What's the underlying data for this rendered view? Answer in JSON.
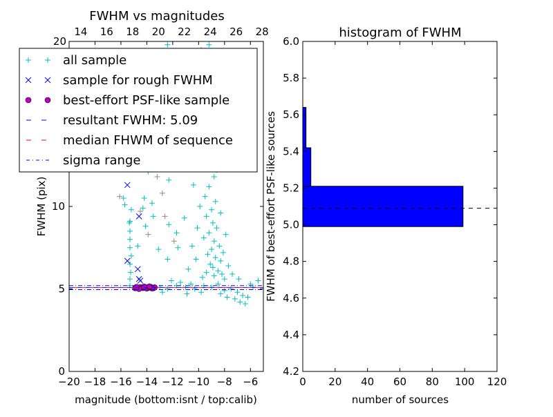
{
  "chart_data": [
    {
      "type": "scatter",
      "title": "FWHM vs magnitudes",
      "xlabel": "magnitude (bottom:isnt / top:calib)",
      "ylabel": "FWHM (pix)",
      "xlim": [
        -20,
        -5
      ],
      "ylim": [
        0,
        20
      ],
      "xticks": [
        -20,
        -18,
        -16,
        -14,
        -12,
        -10,
        -8,
        -6
      ],
      "xtick_labels": [
        "−20",
        "−18",
        "−16",
        "−14",
        "−12",
        "−10",
        "−8",
        "−6"
      ],
      "yticks": [
        0,
        5,
        10
      ],
      "ytick_labels": [
        "0",
        "5",
        "10"
      ],
      "top_ticks": [
        14,
        16,
        18,
        20,
        22,
        24,
        26,
        28
      ],
      "top_tick_labels": [
        "14",
        "16",
        "18",
        "20",
        "22",
        "24",
        "26",
        "28"
      ],
      "top_offset": 33.1,
      "top_corner_label": "20",
      "legend": {
        "placement": "upper-left",
        "entries": [
          "all sample",
          "sample for rough FWHM",
          "best-effort PSF-like sample",
          "resultant FWHM: 5.09",
          "median FHWM of sequence",
          "sigma range"
        ]
      },
      "colors": {
        "all": "#00bfbf",
        "rough": "#0000ff",
        "psf": "#bf00bf",
        "result": "#0000ff",
        "median": "#ff0000",
        "sigma": "#0000ff",
        "gray": "#a08080"
      },
      "resultant_fwhm": 5.09,
      "median_fwhm": 5.09,
      "sigma_range": [
        4.96,
        5.2
      ],
      "series_all": [
        [
          -15.3,
          5.2
        ],
        [
          -15.3,
          5.6
        ],
        [
          -15.25,
          6
        ],
        [
          -15.3,
          6.5
        ],
        [
          -15.2,
          7
        ],
        [
          -15.3,
          7.5
        ],
        [
          -15.3,
          8
        ],
        [
          -15.3,
          8.5
        ],
        [
          -15.35,
          9
        ],
        [
          -15.3,
          9.1
        ],
        [
          -15.2,
          9.8
        ],
        [
          -15.7,
          10.1
        ],
        [
          -15.4,
          12.5
        ],
        [
          -15.8,
          10.5
        ],
        [
          -15.5,
          13.3
        ],
        [
          -14.2,
          10.5
        ],
        [
          -14.3,
          9.9
        ],
        [
          -14.1,
          8.8
        ],
        [
          -13.6,
          10.2
        ],
        [
          -13.5,
          9.4
        ],
        [
          -14.7,
          7.6
        ],
        [
          -13.1,
          7.4
        ],
        [
          -12.4,
          6.8
        ],
        [
          -12.3,
          8.9
        ],
        [
          -11.7,
          8.4
        ],
        [
          -11.1,
          9.3
        ],
        [
          -11.6,
          7.5
        ],
        [
          -12.3,
          11.6
        ],
        [
          -13.9,
          12.1
        ],
        [
          -12,
          12.4
        ],
        [
          -13.6,
          15.5
        ],
        [
          -12.5,
          15
        ],
        [
          -11,
          14.5
        ],
        [
          -10.5,
          16
        ],
        [
          -10,
          17.5
        ],
        [
          -9.8,
          19.5
        ],
        [
          -10.3,
          18
        ],
        [
          -12.4,
          19.8
        ],
        [
          -13.4,
          16.8
        ],
        [
          -11.5,
          17
        ],
        [
          -9.2,
          19.8
        ],
        [
          -9.6,
          18.5
        ],
        [
          -9.3,
          16.5
        ],
        [
          -9.1,
          15.2
        ],
        [
          -8.9,
          14
        ],
        [
          -9.4,
          13.2
        ],
        [
          -9.0,
          12.5
        ],
        [
          -8.8,
          11.8
        ],
        [
          -9.2,
          11.2
        ],
        [
          -9.5,
          10.6
        ],
        [
          -8.7,
          10.3
        ],
        [
          -9.0,
          9.8
        ],
        [
          -9.4,
          9.4
        ],
        [
          -8.9,
          9.0
        ],
        [
          -8.6,
          8.7
        ],
        [
          -9.2,
          8.4
        ],
        [
          -9.6,
          8.1
        ],
        [
          -8.8,
          7.9
        ],
        [
          -8.4,
          7.6
        ],
        [
          -9.0,
          7.4
        ],
        [
          -9.3,
          7.1
        ],
        [
          -8.7,
          6.9
        ],
        [
          -8.3,
          6.7
        ],
        [
          -9.1,
          6.5
        ],
        [
          -8.9,
          6.3
        ],
        [
          -8.5,
          6.1
        ],
        [
          -9.4,
          6.0
        ],
        [
          -8.2,
          5.9
        ],
        [
          -8.8,
          5.8
        ],
        [
          -9.7,
          5.7
        ],
        [
          -8.0,
          5.6
        ],
        [
          -10.2,
          6.8
        ],
        [
          -10.5,
          7.6
        ],
        [
          -10.8,
          6.2
        ],
        [
          -10.1,
          8.7
        ],
        [
          -9.9,
          10.0
        ],
        [
          -10.4,
          11.3
        ],
        [
          -8.1,
          7.2
        ],
        [
          -7.7,
          6.4
        ],
        [
          -7.4,
          5.9
        ],
        [
          -8.6,
          12.2
        ],
        [
          -8.3,
          9.6
        ],
        [
          -7.9,
          8.3
        ],
        [
          -8.5,
          5.3
        ],
        [
          -9.0,
          5.1
        ],
        [
          -9.6,
          5.2
        ],
        [
          -10.3,
          5.0
        ],
        [
          -11.0,
          5.1
        ],
        [
          -11.7,
          5.2
        ],
        [
          -12.4,
          5.0
        ],
        [
          -13.0,
          5.1
        ],
        [
          -12.1,
          5.5
        ],
        [
          -11.4,
          5.4
        ],
        [
          -10.6,
          5.3
        ],
        [
          -8.0,
          4.9
        ],
        [
          -7.5,
          5.0
        ],
        [
          -7.0,
          4.8
        ],
        [
          -6.6,
          4.6
        ],
        [
          -6.2,
          4.5
        ],
        [
          -6.8,
          4.2
        ],
        [
          -7.8,
          4.5
        ],
        [
          -8.3,
          4.7
        ],
        [
          -5.8,
          5.1
        ],
        [
          -5.4,
          5.5
        ],
        [
          -6.0,
          5.3
        ],
        [
          -6.9,
          5.6
        ],
        [
          -7.2,
          4.4
        ],
        [
          -6.4,
          4.1
        ],
        [
          -9.8,
          4.8
        ],
        [
          -10.9,
          4.7
        ],
        [
          -12.8,
          4.8
        ]
      ],
      "series_gray": [
        [
          -16.1,
          10.6
        ],
        [
          -13.2,
          11.8
        ],
        [
          -12.6,
          9.4
        ],
        [
          -14.5,
          9.7
        ],
        [
          -11.9,
          7.9
        ],
        [
          -12.8,
          10.8
        ],
        [
          -13.9,
          8.3
        ]
      ],
      "series_rough": [
        [
          -15.5,
          11.3
        ],
        [
          -14.6,
          9.4
        ],
        [
          -15.5,
          6.7
        ],
        [
          -14.7,
          6.2
        ],
        [
          -14.6,
          5.6
        ],
        [
          -14.5,
          5.5
        ]
      ],
      "series_psf": [
        [
          -14.9,
          5.05
        ],
        [
          -14.7,
          5.08
        ],
        [
          -14.5,
          5.1
        ],
        [
          -14.3,
          5.06
        ],
        [
          -14.1,
          5.1
        ],
        [
          -13.9,
          5.07
        ],
        [
          -13.7,
          5.12
        ],
        [
          -13.5,
          5.05
        ],
        [
          -13.4,
          5.09
        ],
        [
          -14.6,
          5.0
        ],
        [
          -14.0,
          5.03
        ],
        [
          -13.6,
          5.04
        ],
        [
          -14.8,
          5.12
        ],
        [
          -14.2,
          5.14
        ],
        [
          -13.8,
          5.15
        ]
      ]
    },
    {
      "type": "bar",
      "orientation": "horizontal",
      "title": "histogram of FWHM",
      "xlabel": "number of sources",
      "ylabel": "FWHM of best-effort PSF-like sources",
      "xlim": [
        0,
        120
      ],
      "ylim": [
        4.2,
        6.0
      ],
      "xticks": [
        "0",
        "20",
        "40",
        "60",
        "80",
        "100",
        "120"
      ],
      "yticks": [
        "4.2",
        "4.4",
        "4.6",
        "4.8",
        "5.0",
        "5.2",
        "5.4",
        "5.6",
        "5.8",
        "6.0"
      ],
      "bins": [
        [
          4.99,
          5.21,
          99
        ],
        [
          5.21,
          5.42,
          5
        ],
        [
          5.42,
          5.64,
          2
        ]
      ],
      "resultant_fwhm": 5.09,
      "bar_color": "#0000ff"
    }
  ]
}
